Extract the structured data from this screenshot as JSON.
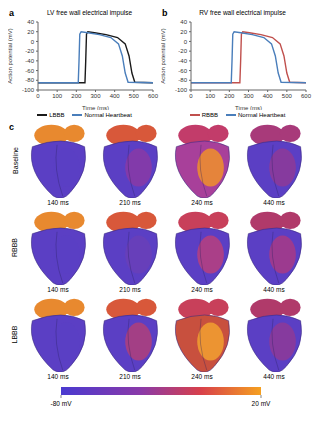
{
  "chart_data": [
    {
      "type": "line",
      "panel_label": "a",
      "title": "LV free wall electrical impulse",
      "x_label": "Time (ms)",
      "y_label": "Action potential (mV)",
      "xlim": [
        0,
        600
      ],
      "xticks": [
        0,
        100,
        200,
        300,
        400,
        500,
        600
      ],
      "ylim": [
        -100,
        40
      ],
      "yticks": [
        -100,
        -80,
        -60,
        -40,
        -20,
        0,
        20,
        40
      ],
      "grid": false,
      "legend": "bottom",
      "series": [
        {
          "name": "LBBB",
          "color": "#1a1a1a",
          "x": [
            0,
            245,
            249,
            253,
            260,
            295,
            355,
            415,
            455,
            475,
            490,
            505,
            600
          ],
          "values": [
            -85,
            -85,
            -40,
            15,
            20,
            18,
            14,
            8,
            -5,
            -30,
            -65,
            -84,
            -85
          ]
        },
        {
          "name": "Normal Heartbeat",
          "color": "#4a7ebb",
          "x": [
            0,
            210,
            214,
            218,
            225,
            260,
            320,
            380,
            420,
            440,
            455,
            470,
            600
          ],
          "values": [
            -85,
            -85,
            -40,
            15,
            20,
            18,
            14,
            8,
            -5,
            -30,
            -65,
            -84,
            -85
          ]
        }
      ]
    },
    {
      "type": "line",
      "panel_label": "b",
      "title": "RV free wall electrical impulse",
      "x_label": "Time (ms)",
      "y_label": "Action potential (mV)",
      "xlim": [
        0,
        600
      ],
      "xticks": [
        0,
        100,
        200,
        300,
        400,
        500,
        600
      ],
      "ylim": [
        -100,
        40
      ],
      "yticks": [
        -100,
        -80,
        -60,
        -40,
        -20,
        0,
        20,
        40
      ],
      "grid": false,
      "legend": "bottom",
      "series": [
        {
          "name": "RBBB",
          "color": "#c0504d",
          "x": [
            0,
            255,
            259,
            263,
            270,
            305,
            365,
            425,
            465,
            485,
            500,
            515,
            600
          ],
          "values": [
            -85,
            -85,
            -40,
            15,
            20,
            18,
            14,
            8,
            -5,
            -30,
            -65,
            -84,
            -85
          ]
        },
        {
          "name": "Normal Heartbeat",
          "color": "#4a7ebb",
          "x": [
            0,
            210,
            214,
            218,
            225,
            260,
            320,
            380,
            420,
            440,
            455,
            470,
            600
          ],
          "values": [
            -85,
            -85,
            -40,
            15,
            20,
            18,
            14,
            8,
            -5,
            -30,
            -65,
            -84,
            -85
          ]
        }
      ]
    }
  ],
  "panel_c": {
    "panel_label": "c",
    "rows": [
      "Baseline",
      "RBBB",
      "LBBB"
    ],
    "times": [
      "140 ms",
      "210 ms",
      "240 ms",
      "440 ms"
    ],
    "colorbar": {
      "range": [
        -80,
        20
      ],
      "ticks": [
        {
          "value": -80,
          "label": "-80 mV"
        },
        {
          "value": 20,
          "label": "20 mV"
        }
      ]
    }
  }
}
